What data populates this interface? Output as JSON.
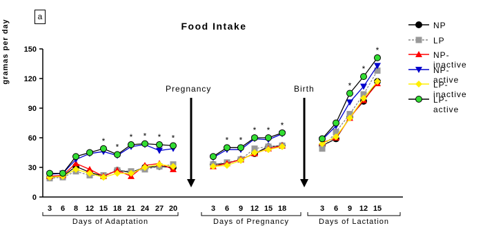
{
  "panel_label": "a",
  "chart_data": {
    "type": "line",
    "title": "Food Intake",
    "ylabel": "gramas per day",
    "ylim": [
      0,
      150
    ],
    "yticks": [
      0,
      30,
      60,
      90,
      120,
      150
    ],
    "segments": [
      {
        "label": "Days of Adaptation",
        "x": [
          "3",
          "6",
          "8",
          "12",
          "15",
          "18",
          "21",
          "24",
          "27",
          "20"
        ],
        "significance": [
          "",
          "",
          "",
          "",
          "*",
          "*",
          "*",
          "*",
          "*",
          "*"
        ]
      },
      {
        "label": "Days of Pregnancy",
        "x": [
          "3",
          "6",
          "9",
          "12",
          "15",
          "18"
        ],
        "significance": [
          "",
          "*",
          "*",
          "*",
          "*",
          "*"
        ]
      },
      {
        "label": "Days of Lactation",
        "x": [
          "3",
          "6",
          "9",
          "12",
          "15"
        ],
        "significance": [
          "",
          "",
          "*",
          "*",
          "*"
        ]
      }
    ],
    "annotations": [
      "Pregnancy",
      "Birth"
    ],
    "series": [
      {
        "name": "NP",
        "color": "#000000",
        "marker": "circle",
        "fill": "#000000",
        "segments": [
          [
            20,
            21,
            31,
            25,
            21,
            27,
            25,
            30,
            31,
            30
          ],
          [
            33,
            34,
            38,
            44,
            51,
            52
          ],
          [
            52,
            59,
            81,
            97,
            117
          ]
        ]
      },
      {
        "name": "LP",
        "color": "#888888",
        "marker": "square",
        "fill": "#999999",
        "dashed": true,
        "segments": [
          [
            19,
            20,
            26,
            22,
            22,
            27,
            26,
            28,
            31,
            33
          ],
          [
            33,
            35,
            38,
            49,
            51,
            52
          ],
          [
            49,
            66,
            84,
            104,
            128
          ]
        ]
      },
      {
        "name": "NP-inactive",
        "color": "#ff0000",
        "marker": "triangle-up",
        "fill": "#ff0000",
        "segments": [
          [
            21,
            22,
            34,
            28,
            21,
            27,
            21,
            32,
            34,
            28
          ],
          [
            31,
            34,
            38,
            44,
            49,
            52
          ],
          [
            55,
            60,
            80,
            98,
            115
          ]
        ]
      },
      {
        "name": "NP-active",
        "color": "#0000cc",
        "marker": "triangle-down",
        "fill": "#0000cc",
        "segments": [
          [
            23,
            24,
            38,
            44,
            46,
            42,
            51,
            53,
            47,
            49
          ],
          [
            40,
            48,
            48,
            59,
            58,
            64
          ],
          [
            58,
            72,
            96,
            112,
            133
          ]
        ]
      },
      {
        "name": "LP-inactive",
        "color": "#ffee00",
        "marker": "diamond",
        "fill": "#ffee00",
        "segments": [
          [
            20,
            21,
            28,
            24,
            20,
            24,
            24,
            30,
            33,
            31
          ],
          [
            31,
            32,
            37,
            45,
            48,
            51
          ],
          [
            54,
            61,
            80,
            100,
            117
          ]
        ]
      },
      {
        "name": "LP-active",
        "color": "#000000",
        "marker": "circle",
        "fill": "#33dd33",
        "segments": [
          [
            24,
            24,
            41,
            45,
            49,
            43,
            53,
            54,
            53,
            52
          ],
          [
            41,
            50,
            50,
            60,
            60,
            65
          ],
          [
            59,
            75,
            105,
            122,
            141
          ]
        ]
      }
    ],
    "grid": false,
    "legend": "right"
  }
}
